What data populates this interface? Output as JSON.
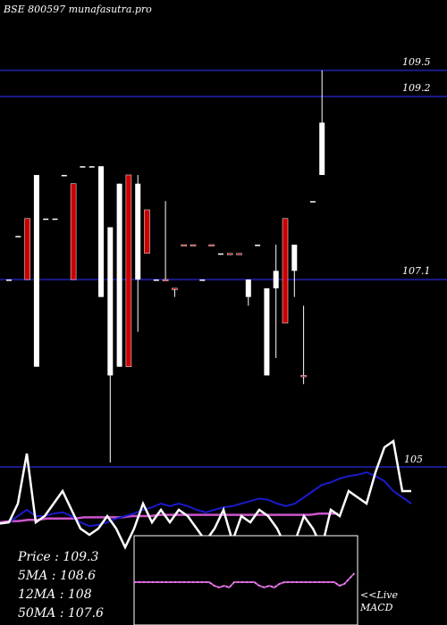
{
  "chart_data": {
    "type": "candlestick",
    "title": "BSE 800597 munafasutra.pro",
    "levels": [
      {
        "label": "109.5",
        "value": 109.5
      },
      {
        "label": "109.2",
        "value": 109.2
      },
      {
        "label": "107.1",
        "value": 107.1
      }
    ],
    "ylim": [
      105.8,
      110.0
    ],
    "candles": [
      {
        "o": 107.1,
        "h": 107.1,
        "l": 107.1,
        "c": 107.1,
        "dir": "up"
      },
      {
        "o": 107.6,
        "h": 107.6,
        "l": 107.6,
        "c": 107.6,
        "dir": "up"
      },
      {
        "o": 107.8,
        "h": 107.8,
        "l": 107.1,
        "c": 107.1,
        "dir": "down"
      },
      {
        "o": 108.3,
        "h": 108.3,
        "l": 106.1,
        "c": 106.1,
        "dir": "up"
      },
      {
        "o": 107.8,
        "h": 107.8,
        "l": 107.8,
        "c": 107.8,
        "dir": "up"
      },
      {
        "o": 107.8,
        "h": 107.8,
        "l": 107.8,
        "c": 107.8,
        "dir": "up"
      },
      {
        "o": 108.3,
        "h": 108.3,
        "l": 108.3,
        "c": 108.3,
        "dir": "up"
      },
      {
        "o": 108.2,
        "h": 108.2,
        "l": 107.1,
        "c": 107.1,
        "dir": "down"
      },
      {
        "o": 108.4,
        "h": 108.4,
        "l": 108.4,
        "c": 108.4,
        "dir": "up"
      },
      {
        "o": 108.4,
        "h": 108.4,
        "l": 108.4,
        "c": 108.4,
        "dir": "up"
      },
      {
        "o": 108.4,
        "h": 108.4,
        "l": 106.9,
        "c": 106.9,
        "dir": "up"
      },
      {
        "o": 107.7,
        "h": 107.7,
        "l": 105.0,
        "c": 106.0,
        "dir": "up"
      },
      {
        "o": 108.2,
        "h": 108.2,
        "l": 106.1,
        "c": 106.1,
        "dir": "up"
      },
      {
        "o": 108.3,
        "h": 108.3,
        "l": 106.1,
        "c": 106.1,
        "dir": "down"
      },
      {
        "o": 108.2,
        "h": 108.3,
        "l": 106.5,
        "c": 107.1,
        "dir": "up"
      },
      {
        "o": 107.9,
        "h": 107.9,
        "l": 107.4,
        "c": 107.4,
        "dir": "down"
      },
      {
        "o": 107.1,
        "h": 107.1,
        "l": 107.1,
        "c": 107.1,
        "dir": "up"
      },
      {
        "o": 107.1,
        "h": 108.0,
        "l": 107.1,
        "c": 107.1,
        "dir": "down"
      },
      {
        "o": 107.0,
        "h": 107.0,
        "l": 106.9,
        "c": 107.0,
        "dir": "down"
      },
      {
        "o": 107.5,
        "h": 107.5,
        "l": 107.5,
        "c": 107.5,
        "dir": "down"
      },
      {
        "o": 107.5,
        "h": 107.5,
        "l": 107.5,
        "c": 107.5,
        "dir": "down"
      },
      {
        "o": 107.1,
        "h": 107.1,
        "l": 107.1,
        "c": 107.1,
        "dir": "up"
      },
      {
        "o": 107.5,
        "h": 107.5,
        "l": 107.5,
        "c": 107.5,
        "dir": "down"
      },
      {
        "o": 107.4,
        "h": 107.4,
        "l": 107.4,
        "c": 107.4,
        "dir": "up"
      },
      {
        "o": 107.4,
        "h": 107.4,
        "l": 107.4,
        "c": 107.4,
        "dir": "down"
      },
      {
        "o": 107.4,
        "h": 107.4,
        "l": 107.4,
        "c": 107.4,
        "dir": "down"
      },
      {
        "o": 107.1,
        "h": 107.1,
        "l": 106.8,
        "c": 106.9,
        "dir": "up"
      },
      {
        "o": 107.5,
        "h": 107.5,
        "l": 107.5,
        "c": 107.5,
        "dir": "up"
      },
      {
        "o": 107.0,
        "h": 107.0,
        "l": 106.0,
        "c": 106.0,
        "dir": "up"
      },
      {
        "o": 107.2,
        "h": 107.5,
        "l": 106.2,
        "c": 107.0,
        "dir": "up"
      },
      {
        "o": 107.8,
        "h": 107.8,
        "l": 106.6,
        "c": 106.6,
        "dir": "down"
      },
      {
        "o": 107.5,
        "h": 107.5,
        "l": 106.9,
        "c": 107.2,
        "dir": "up"
      },
      {
        "o": 106.0,
        "h": 106.8,
        "l": 105.9,
        "c": 106.0,
        "dir": "down"
      },
      {
        "o": 108.0,
        "h": 108.0,
        "l": 108.0,
        "c": 108.0,
        "dir": "up"
      },
      {
        "o": 108.3,
        "h": 109.5,
        "l": 108.3,
        "c": 108.9,
        "dir": "up"
      }
    ],
    "oscillator": {
      "level_label": "105",
      "white": [
        24,
        25,
        40,
        80,
        25,
        30,
        40,
        50,
        35,
        20,
        15,
        20,
        30,
        20,
        5,
        20,
        40,
        25,
        35,
        25,
        35,
        30,
        20,
        10,
        20,
        35,
        10,
        30,
        25,
        35,
        30,
        20,
        5,
        10,
        30,
        20,
        5,
        35,
        30,
        50,
        45,
        40,
        65,
        85,
        90,
        50,
        50
      ],
      "blue": [
        24,
        25,
        30,
        35,
        30,
        30,
        32,
        33,
        30,
        25,
        22,
        23,
        25,
        28,
        30,
        32,
        35,
        37,
        40,
        38,
        40,
        38,
        35,
        33,
        35,
        37,
        38,
        40,
        42,
        44,
        43,
        40,
        38,
        40,
        45,
        50,
        55,
        57,
        60,
        62,
        63,
        65,
        62,
        58,
        50,
        45,
        40
      ],
      "magenta": [
        25,
        26,
        26,
        27,
        27,
        28,
        28,
        28,
        28,
        29,
        29,
        29,
        29,
        29,
        30,
        30,
        30,
        31,
        31,
        31,
        31,
        31,
        31,
        31,
        31,
        31,
        31,
        31,
        31,
        31,
        31,
        31,
        31,
        31,
        32,
        32,
        32
      ]
    },
    "macd": {
      "label_line1": "<<Live",
      "label_line2": "MACD",
      "values": [
        0,
        0,
        0,
        0,
        0,
        0,
        0,
        0,
        0,
        0,
        0,
        0,
        0,
        0,
        0,
        0,
        -2,
        -3,
        -2,
        -3,
        0,
        0,
        0,
        0,
        0,
        -2,
        -3,
        -2,
        -3,
        -1,
        0,
        0,
        0,
        0,
        0,
        0,
        0,
        0,
        0,
        0,
        0,
        -2,
        -1,
        2,
        5
      ]
    },
    "stats": [
      {
        "label": "Price   : 109.3"
      },
      {
        "label": "5MA : 108.6"
      },
      {
        "label": "12MA : 108"
      },
      {
        "label": "50MA : 107.6"
      }
    ],
    "colors": {
      "up": "#ffffff",
      "down": "#cc0000",
      "level": "#1a1a8c",
      "blue_ma": "#1a1acc",
      "magenta_ma": "#cc55cc",
      "macd_line": "#cc55cc",
      "macd_box": "#ffffff"
    }
  }
}
